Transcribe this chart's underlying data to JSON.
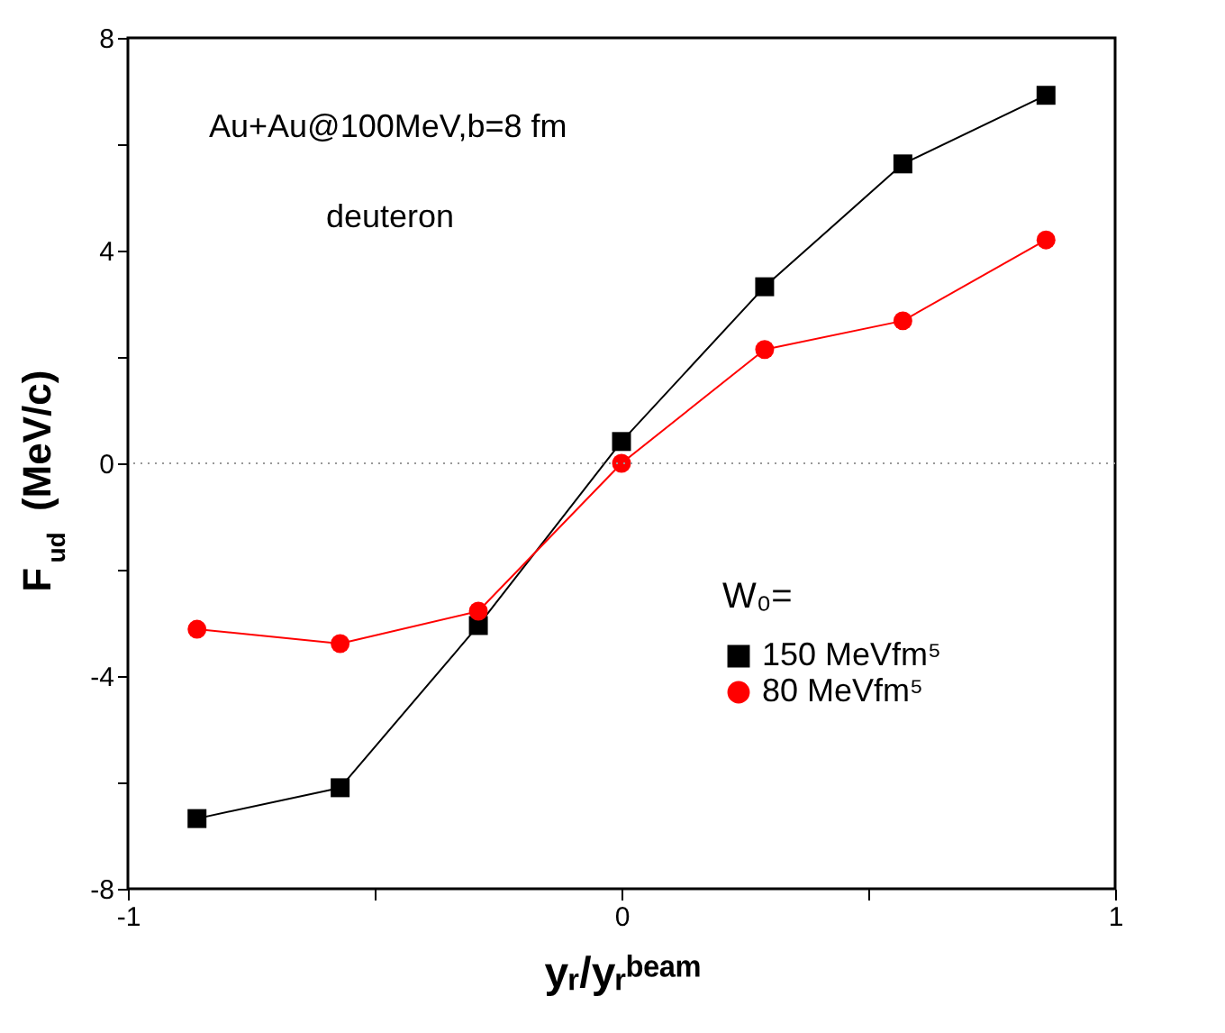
{
  "chart_data": {
    "type": "line",
    "xlabel": "yᵣ/yᵣᵇᵉᵃᵐ",
    "ylabel": "F$_{ud}$ (MeV/c)",
    "legend_title": "W₀=",
    "x": [
      -0.86,
      -0.57,
      -0.29,
      0,
      0.29,
      0.57,
      0.86
    ],
    "series": [
      {
        "name": "150 MeVfm⁵",
        "color": "#000000",
        "marker": "square",
        "values": [
          -6.68,
          -6.1,
          -3.05,
          0.41,
          3.32,
          5.63,
          6.92
        ]
      },
      {
        "name": "80 MeVfm⁵",
        "color": "#ff0000",
        "marker": "circle",
        "values": [
          -3.12,
          -3.39,
          -2.78,
          0,
          2.14,
          2.68,
          4.2
        ]
      }
    ],
    "xlim": [
      -1,
      1
    ],
    "xticks": [
      -1,
      {
        "value": -0.5,
        "label": null
      },
      0,
      {
        "value": 0.5,
        "label": null
      },
      1
    ],
    "ylim": [
      -8,
      8
    ],
    "yticks": [
      -8,
      {
        "value": -6,
        "label": null
      },
      -4,
      {
        "value": -2,
        "label": null
      },
      0,
      {
        "value": 2,
        "label": null
      },
      4,
      {
        "value": 6,
        "label": null
      },
      8
    ],
    "ref_lines": [
      {
        "axis": "y",
        "value": 0,
        "color": "#999999",
        "line_style": "dotted"
      }
    ],
    "annotations": [
      "Au+Au@100MeV,b=8 fm",
      "deuteron"
    ],
    "legend": "bottom right",
    "grid": false,
    "line_style": "solid"
  }
}
